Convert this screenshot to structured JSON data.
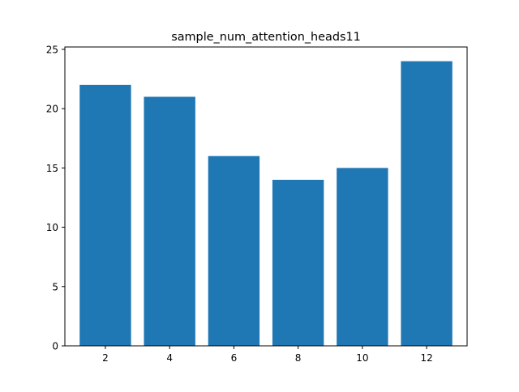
{
  "chart_data": {
    "type": "bar",
    "title": "sample_num_attention_heads11",
    "categories": [
      "2",
      "4",
      "6",
      "8",
      "10",
      "12"
    ],
    "x_values": [
      2,
      4,
      6,
      8,
      10,
      12
    ],
    "values": [
      22,
      21,
      16,
      14,
      15,
      24
    ],
    "xlabel": "",
    "ylabel": "",
    "xlim": [
      0.74,
      13.26
    ],
    "ylim": [
      0,
      25.2
    ],
    "x_ticks": [
      "2",
      "4",
      "6",
      "8",
      "10",
      "12"
    ],
    "x_tick_values": [
      2,
      4,
      6,
      8,
      10,
      12
    ],
    "y_ticks": [
      "0",
      "5",
      "10",
      "15",
      "20",
      "25"
    ],
    "y_tick_values": [
      0,
      5,
      10,
      15,
      20,
      25
    ],
    "bar_width_data": 1.6,
    "bar_color": "#1f77b4",
    "grid": false,
    "legend": "none"
  },
  "colors": {
    "background": "#ffffff",
    "axes": "#000000",
    "text": "#000000"
  }
}
